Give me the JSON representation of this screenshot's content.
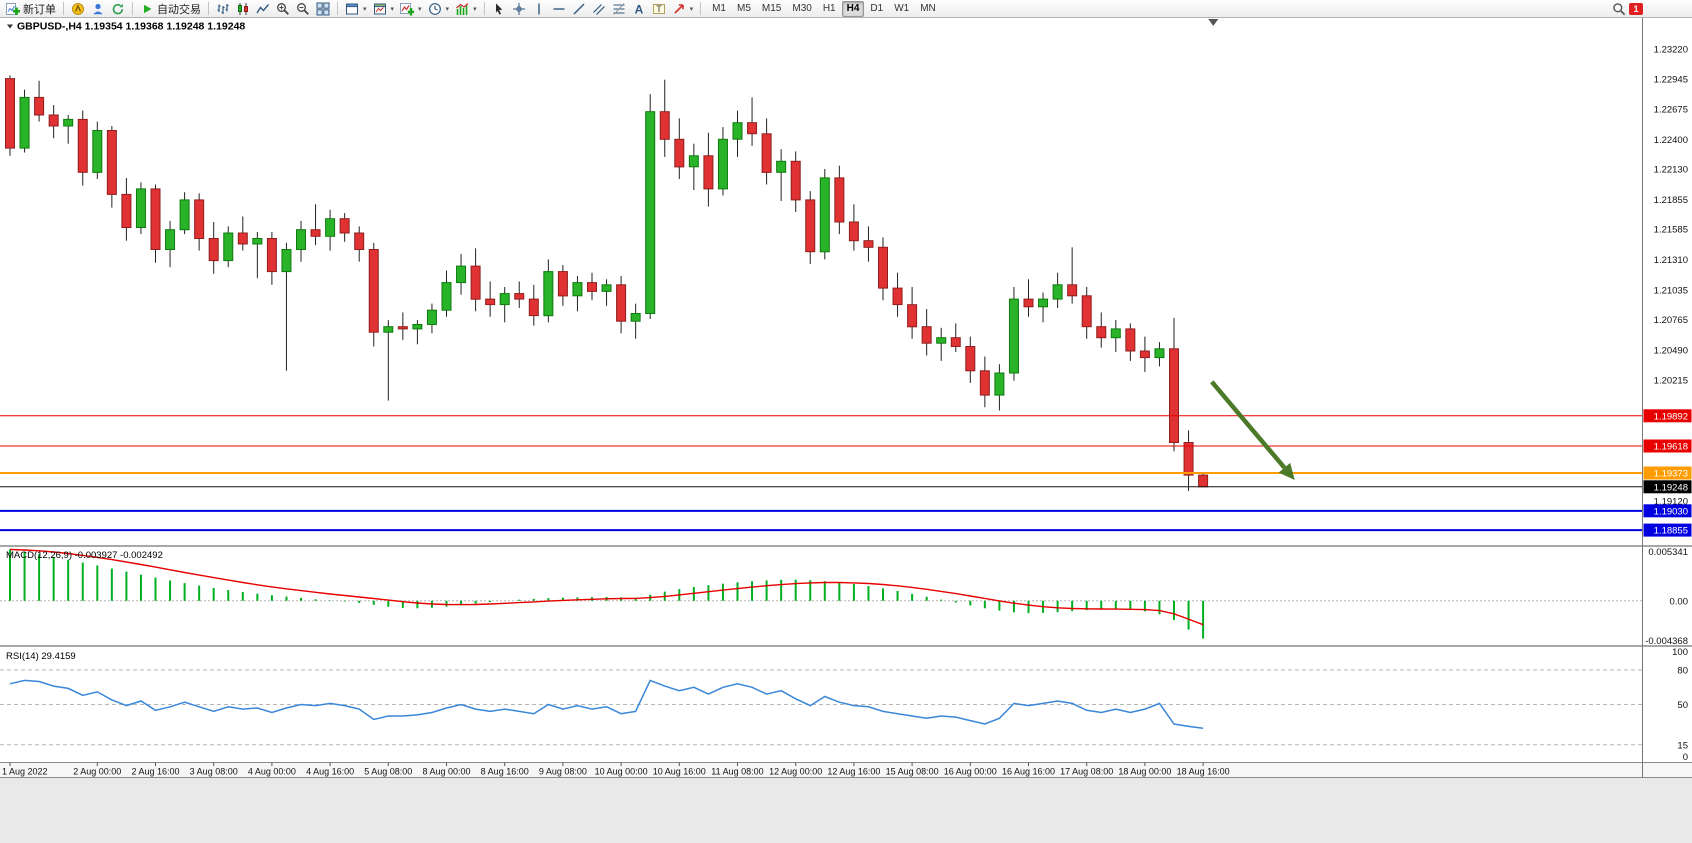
{
  "toolbar": {
    "new_order": "新订单",
    "auto_trading": "自动交易",
    "timeframes": [
      "M1",
      "M5",
      "M15",
      "M30",
      "H1",
      "H4",
      "D1",
      "W1",
      "MN"
    ],
    "active_timeframe": "H4",
    "badge": "1"
  },
  "chart_data": {
    "type": "candlestick",
    "symbol": "GBPUSD-,H4",
    "ohlc_display": [
      "1.19354",
      "1.19368",
      "1.19248",
      "1.19248"
    ],
    "ylim": [
      1.1872,
      1.235
    ],
    "colors": {
      "up": "#29b329",
      "up_border": "#0f7a0f",
      "down": "#e03232",
      "down_border": "#8f1d1d",
      "wick": "#222222"
    },
    "candles": [
      [
        1.2295,
        1.2298,
        1.2225,
        1.2232
      ],
      [
        1.2232,
        1.2285,
        1.2228,
        1.2278
      ],
      [
        1.2278,
        1.2293,
        1.2256,
        1.2262
      ],
      [
        1.2262,
        1.2271,
        1.2241,
        1.2252
      ],
      [
        1.2252,
        1.2262,
        1.2236,
        1.2258
      ],
      [
        1.2258,
        1.2266,
        1.2198,
        1.221
      ],
      [
        1.221,
        1.2256,
        1.2204,
        1.2248
      ],
      [
        1.2248,
        1.2252,
        1.2178,
        1.219
      ],
      [
        1.219,
        1.2205,
        1.2148,
        1.216
      ],
      [
        1.216,
        1.2201,
        1.2154,
        1.2195
      ],
      [
        1.2195,
        1.2199,
        1.2128,
        1.214
      ],
      [
        1.214,
        1.2166,
        1.2124,
        1.2158
      ],
      [
        1.2158,
        1.2192,
        1.2154,
        1.2185
      ],
      [
        1.2185,
        1.2191,
        1.2139,
        1.215
      ],
      [
        1.215,
        1.2165,
        1.2118,
        1.213
      ],
      [
        1.213,
        1.2161,
        1.2124,
        1.2155
      ],
      [
        1.2155,
        1.217,
        1.2139,
        1.2145
      ],
      [
        1.2145,
        1.2156,
        1.2114,
        1.215
      ],
      [
        1.215,
        1.2156,
        1.2108,
        1.212
      ],
      [
        1.212,
        1.2146,
        1.203,
        1.214
      ],
      [
        1.214,
        1.2166,
        1.2129,
        1.2158
      ],
      [
        1.2158,
        1.2181,
        1.2144,
        1.2152
      ],
      [
        1.2152,
        1.2176,
        1.2139,
        1.2168
      ],
      [
        1.2168,
        1.2173,
        1.2147,
        1.2155
      ],
      [
        1.2155,
        1.2161,
        1.2129,
        1.214
      ],
      [
        1.214,
        1.2146,
        1.2052,
        1.2065
      ],
      [
        1.2065,
        1.2076,
        1.2003,
        1.207
      ],
      [
        1.207,
        1.2083,
        1.2058,
        1.2068
      ],
      [
        1.2068,
        1.2076,
        1.2054,
        1.2072
      ],
      [
        1.2072,
        1.2091,
        1.2064,
        1.2085
      ],
      [
        1.2085,
        1.2121,
        1.2079,
        1.211
      ],
      [
        1.211,
        1.2136,
        1.2099,
        1.2125
      ],
      [
        1.2125,
        1.2141,
        1.2084,
        1.2095
      ],
      [
        1.2095,
        1.2111,
        1.2079,
        1.209
      ],
      [
        1.209,
        1.2106,
        1.2074,
        1.21
      ],
      [
        1.21,
        1.2111,
        1.2087,
        1.2095
      ],
      [
        1.2095,
        1.2108,
        1.2071,
        1.208
      ],
      [
        1.208,
        1.2131,
        1.2074,
        1.212
      ],
      [
        1.212,
        1.2126,
        1.2089,
        1.2098
      ],
      [
        1.2098,
        1.2116,
        1.2084,
        1.211
      ],
      [
        1.211,
        1.2119,
        1.2094,
        1.2102
      ],
      [
        1.2102,
        1.2113,
        1.2089,
        1.2108
      ],
      [
        1.2108,
        1.2116,
        1.2064,
        1.2075
      ],
      [
        1.2075,
        1.2091,
        1.2059,
        1.2082
      ],
      [
        1.2082,
        1.2281,
        1.2077,
        1.2265
      ],
      [
        1.2265,
        1.2294,
        1.2224,
        1.224
      ],
      [
        1.224,
        1.2259,
        1.2204,
        1.2215
      ],
      [
        1.2215,
        1.2236,
        1.2194,
        1.2225
      ],
      [
        1.2225,
        1.2246,
        1.2179,
        1.2195
      ],
      [
        1.2195,
        1.2251,
        1.2189,
        1.224
      ],
      [
        1.224,
        1.2266,
        1.2224,
        1.2255
      ],
      [
        1.2255,
        1.2278,
        1.2234,
        1.2245
      ],
      [
        1.2245,
        1.2259,
        1.2199,
        1.221
      ],
      [
        1.221,
        1.2231,
        1.2184,
        1.222
      ],
      [
        1.222,
        1.2229,
        1.2174,
        1.2185
      ],
      [
        1.2185,
        1.2193,
        1.2127,
        1.2138
      ],
      [
        1.2138,
        1.2213,
        1.2131,
        1.2205
      ],
      [
        1.2205,
        1.2216,
        1.2154,
        1.2165
      ],
      [
        1.2165,
        1.2181,
        1.2139,
        1.2148
      ],
      [
        1.2148,
        1.2161,
        1.2129,
        1.2142
      ],
      [
        1.2142,
        1.2151,
        1.2094,
        1.2105
      ],
      [
        1.2105,
        1.2119,
        1.2079,
        1.209
      ],
      [
        1.209,
        1.2106,
        1.2059,
        1.207
      ],
      [
        1.207,
        1.2086,
        1.2044,
        1.2055
      ],
      [
        1.2055,
        1.2069,
        1.2039,
        1.206
      ],
      [
        1.206,
        1.2073,
        1.2047,
        1.2052
      ],
      [
        1.2052,
        1.2061,
        1.2019,
        1.203
      ],
      [
        1.203,
        1.2043,
        1.1997,
        1.2008
      ],
      [
        1.2008,
        1.2036,
        1.1994,
        1.2028
      ],
      [
        1.2028,
        1.2106,
        1.2021,
        1.2095
      ],
      [
        1.2095,
        1.2113,
        1.2079,
        1.2088
      ],
      [
        1.2088,
        1.2101,
        1.2074,
        1.2095
      ],
      [
        1.2095,
        1.2119,
        1.2087,
        1.2108
      ],
      [
        1.2108,
        1.2142,
        1.2091,
        1.2098
      ],
      [
        1.2098,
        1.2106,
        1.2059,
        1.207
      ],
      [
        1.207,
        1.2083,
        1.2051,
        1.206
      ],
      [
        1.206,
        1.2076,
        1.2047,
        1.2068
      ],
      [
        1.2068,
        1.2073,
        1.2039,
        1.2048
      ],
      [
        1.2048,
        1.2061,
        1.2029,
        1.2042
      ],
      [
        1.2042,
        1.2056,
        1.2034,
        1.205
      ],
      [
        1.205,
        1.2078,
        1.1957,
        1.1965
      ],
      [
        1.1965,
        1.1976,
        1.1921,
        1.19354
      ],
      [
        1.19354,
        1.19368,
        1.19248,
        1.19248
      ]
    ],
    "horizontal_lines": [
      {
        "price": 1.19892,
        "color": "#e80000",
        "width": 1
      },
      {
        "price": 1.19618,
        "color": "#e80000",
        "width": 1
      },
      {
        "price": 1.19373,
        "color": "#ff9c00",
        "width": 2
      },
      {
        "price": 1.19248,
        "color": "#111111",
        "width": 1
      },
      {
        "price": 1.1903,
        "color": "#0000e0",
        "width": 2
      },
      {
        "price": 1.18855,
        "color": "#0000e0",
        "width": 2
      }
    ],
    "price_axis": {
      "labels": [
        1.2322,
        1.22945,
        1.22675,
        1.224,
        1.2213,
        1.21855,
        1.21585,
        1.2131,
        1.21035,
        1.20765,
        1.2049,
        1.20215,
        1.1912
      ],
      "tags": [
        {
          "price": 1.19892,
          "color": "#e80000"
        },
        {
          "price": 1.19618,
          "color": "#e80000"
        },
        {
          "price": 1.19373,
          "color": "#ff9c00"
        },
        {
          "price": 1.19248,
          "color": "#000000"
        },
        {
          "price": 1.1903,
          "color": "#0000e0"
        },
        {
          "price": 1.18855,
          "color": "#0000e0"
        }
      ]
    },
    "arrow": {
      "from": {
        "index": 82.6,
        "price": 1.202
      },
      "to": {
        "index": 88.3,
        "price": 1.1931
      },
      "color": "#4c7a28"
    },
    "x_labels": [
      {
        "index": 0,
        "text": "1 Aug 2022"
      },
      {
        "index": 6,
        "text": "2 Aug 00:00"
      },
      {
        "index": 10,
        "text": "2 Aug 16:00"
      },
      {
        "index": 14,
        "text": "3 Aug 08:00"
      },
      {
        "index": 18,
        "text": "4 Aug 00:00"
      },
      {
        "index": 22,
        "text": "4 Aug 16:00"
      },
      {
        "index": 26,
        "text": "5 Aug 08:00"
      },
      {
        "index": 30,
        "text": "8 Aug 00:00"
      },
      {
        "index": 34,
        "text": "8 Aug 16:00"
      },
      {
        "index": 38,
        "text": "9 Aug 08:00"
      },
      {
        "index": 42,
        "text": "10 Aug 00:00"
      },
      {
        "index": 46,
        "text": "10 Aug 16:00"
      },
      {
        "index": 50,
        "text": "11 Aug 08:00"
      },
      {
        "index": 54,
        "text": "12 Aug 00:00"
      },
      {
        "index": 58,
        "text": "12 Aug 16:00"
      },
      {
        "index": 62,
        "text": "15 Aug 08:00"
      },
      {
        "index": 66,
        "text": "16 Aug 00:00"
      },
      {
        "index": 70,
        "text": "16 Aug 16:00"
      },
      {
        "index": 74,
        "text": "17 Aug 08:00"
      },
      {
        "index": 78,
        "text": "18 Aug 00:00"
      },
      {
        "index": 82,
        "text": "18 Aug 16:00"
      }
    ],
    "macd": {
      "label": "MACD(12,26,9)",
      "values_text": "-0.003927 -0.002492",
      "ylim": [
        -0.0046,
        0.0056
      ],
      "colors": {
        "histogram": "#00b020",
        "signal": "#e80000"
      },
      "axis_labels": [
        {
          "value": 0.005341,
          "text": "0.005341"
        },
        {
          "value": 0,
          "text": "0.00"
        },
        {
          "value": -0.004368,
          "text": "-0.004368"
        }
      ],
      "histogram": [
        0.00534,
        0.0051,
        0.00485,
        0.00458,
        0.00428,
        0.00398,
        0.00368,
        0.00336,
        0.00304,
        0.00272,
        0.00242,
        0.00212,
        0.00184,
        0.00158,
        0.00134,
        0.00112,
        0.00092,
        0.00074,
        0.00058,
        0.00044,
        0.0003,
        0.00016,
        4e-05,
        -8e-05,
        -0.00022,
        -0.00042,
        -0.00062,
        -0.00074,
        -0.00078,
        -0.00072,
        -0.0006,
        -0.00046,
        -0.0003,
        -0.00014,
        0,
        0.00012,
        0.0002,
        0.00028,
        0.00032,
        0.00036,
        0.00038,
        0.0004,
        0.00036,
        0.00032,
        0.00064,
        0.00096,
        0.00122,
        0.00144,
        0.00162,
        0.00178,
        0.00192,
        0.00204,
        0.00212,
        0.00218,
        0.0022,
        0.00214,
        0.00204,
        0.0019,
        0.00174,
        0.00154,
        0.0013,
        0.00102,
        0.00072,
        0.00042,
        0.00012,
        -0.00018,
        -0.00048,
        -0.00078,
        -0.00102,
        -0.0012,
        -0.00128,
        -0.00126,
        -0.00118,
        -0.00108,
        -0.00098,
        -0.00092,
        -0.0009,
        -0.00096,
        -0.0011,
        -0.0014,
        -0.002,
        -0.003,
        -0.003927
      ],
      "signal": [
        0.00534,
        0.00529,
        0.0052,
        0.00508,
        0.00492,
        0.00473,
        0.00452,
        0.00429,
        0.00404,
        0.00378,
        0.00351,
        0.00323,
        0.00295,
        0.00268,
        0.00241,
        0.00215,
        0.0019,
        0.00167,
        0.00145,
        0.00125,
        0.00106,
        0.00088,
        0.00071,
        0.00055,
        0.0004,
        0.00024,
        7e-05,
        -9e-05,
        -0.00023,
        -0.00033,
        -0.00038,
        -0.0004,
        -0.00038,
        -0.00033,
        -0.00026,
        -0.00019,
        -0.00011,
        -3e-05,
        4e-05,
        0.0001,
        0.00016,
        0.00021,
        0.00024,
        0.00025,
        0.00033,
        0.00046,
        0.00061,
        0.00078,
        0.00095,
        0.00111,
        0.00127,
        0.00143,
        0.00157,
        0.00169,
        0.00179,
        0.00186,
        0.0019,
        0.0019,
        0.00186,
        0.0018,
        0.0017,
        0.00156,
        0.00139,
        0.0012,
        0.00098,
        0.00075,
        0.0005,
        0.00025,
        -1e-05,
        -0.00025,
        -0.00045,
        -0.00061,
        -0.00073,
        -0.0008,
        -0.00083,
        -0.00085,
        -0.00086,
        -0.00088,
        -0.00092,
        -0.00102,
        -0.00135,
        -0.0019,
        -0.002492
      ]
    },
    "rsi": {
      "label": "RSI(14)",
      "value_text": "29.4159",
      "ylim": [
        0,
        100
      ],
      "color": "#3a87d9",
      "levels": [
        80,
        50,
        15
      ],
      "axis_labels": [
        {
          "value": 100,
          "text": "100"
        },
        {
          "value": 80,
          "text": "80"
        },
        {
          "value": 50,
          "text": "50"
        },
        {
          "value": 15,
          "text": "15"
        },
        {
          "value": 0,
          "text": "0"
        }
      ],
      "values": [
        68,
        71,
        70,
        66,
        64,
        58,
        61,
        54,
        49,
        53,
        45,
        48,
        52,
        48,
        44,
        48,
        46,
        47,
        43,
        47,
        50,
        49,
        51,
        49,
        46,
        37,
        40,
        40,
        41,
        43,
        47,
        50,
        46,
        44,
        46,
        44,
        42,
        50,
        46,
        49,
        46,
        48,
        42,
        44,
        71,
        66,
        62,
        65,
        59,
        65,
        68,
        65,
        59,
        62,
        55,
        49,
        57,
        52,
        49,
        48,
        44,
        42,
        40,
        38,
        40,
        39,
        36,
        33,
        38,
        51,
        49,
        51,
        53,
        51,
        45,
        43,
        46,
        43,
        46,
        51,
        33,
        31,
        29.4159
      ]
    }
  }
}
